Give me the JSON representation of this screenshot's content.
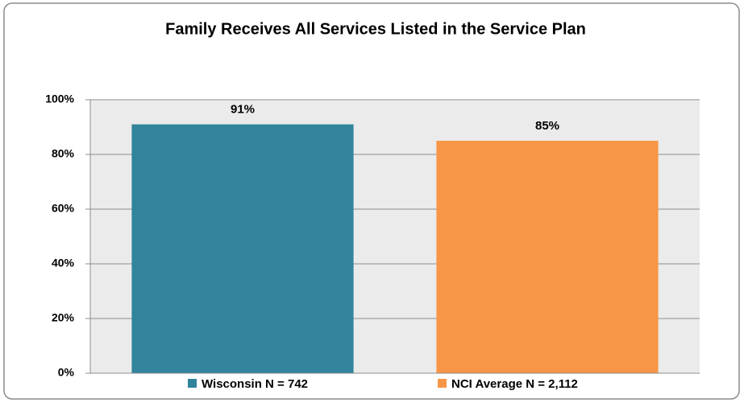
{
  "chart_data": {
    "type": "bar",
    "title": "Family Receives All Services Listed in the Service Plan",
    "categories": [
      "Wisconsin N = 742",
      "NCI Average N = 2,112"
    ],
    "values": [
      91,
      85
    ],
    "value_labels": [
      "91%",
      "85%"
    ],
    "colors": [
      "#31849b",
      "#f79646"
    ],
    "ylim": [
      0,
      100
    ],
    "yticks": [
      {
        "value": 0,
        "label": "0%"
      },
      {
        "value": 20,
        "label": "20%"
      },
      {
        "value": 40,
        "label": "40%"
      },
      {
        "value": 60,
        "label": "60%"
      },
      {
        "value": 80,
        "label": "80%"
      },
      {
        "value": 100,
        "label": "100%"
      }
    ],
    "grid": true,
    "legend": "bottom"
  }
}
